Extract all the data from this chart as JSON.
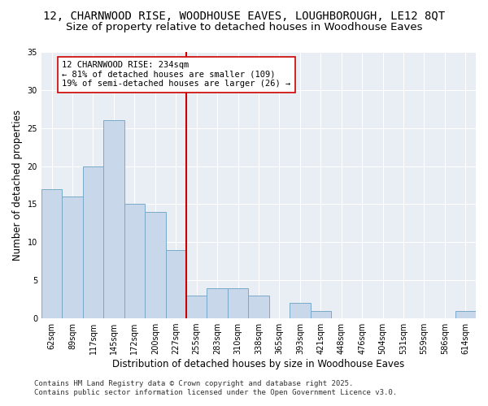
{
  "title1": "12, CHARNWOOD RISE, WOODHOUSE EAVES, LOUGHBOROUGH, LE12 8QT",
  "title2": "Size of property relative to detached houses in Woodhouse Eaves",
  "xlabel": "Distribution of detached houses by size in Woodhouse Eaves",
  "ylabel": "Number of detached properties",
  "footer1": "Contains HM Land Registry data © Crown copyright and database right 2025.",
  "footer2": "Contains public sector information licensed under the Open Government Licence v3.0.",
  "bar_labels": [
    "62sqm",
    "89sqm",
    "117sqm",
    "145sqm",
    "172sqm",
    "200sqm",
    "227sqm",
    "255sqm",
    "283sqm",
    "310sqm",
    "338sqm",
    "365sqm",
    "393sqm",
    "421sqm",
    "448sqm",
    "476sqm",
    "504sqm",
    "531sqm",
    "559sqm",
    "586sqm",
    "614sqm"
  ],
  "bar_values": [
    17,
    16,
    20,
    26,
    15,
    14,
    9,
    3,
    4,
    4,
    3,
    0,
    2,
    1,
    0,
    0,
    0,
    0,
    0,
    0,
    1
  ],
  "bar_color": "#c8d8ea",
  "bar_edge_color": "#7aaac8",
  "annotation_text": "12 CHARNWOOD RISE: 234sqm\n← 81% of detached houses are smaller (109)\n19% of semi-detached houses are larger (26) →",
  "vline_color": "#cc0000",
  "annotation_box_facecolor": "#ffffff",
  "annotation_box_edgecolor": "#cc0000",
  "ylim": [
    0,
    35
  ],
  "yticks": [
    0,
    5,
    10,
    15,
    20,
    25,
    30,
    35
  ],
  "fig_bg_color": "#ffffff",
  "plot_bg_color": "#e8eef4",
  "title1_fontsize": 10,
  "title2_fontsize": 9.5,
  "axis_label_fontsize": 8.5,
  "tick_fontsize": 7,
  "annotation_fontsize": 7.5,
  "footer_fontsize": 6.5,
  "grid_color": "#ffffff",
  "figsize": [
    6.0,
    5.0
  ],
  "dpi": 100,
  "vline_x": 6.5
}
